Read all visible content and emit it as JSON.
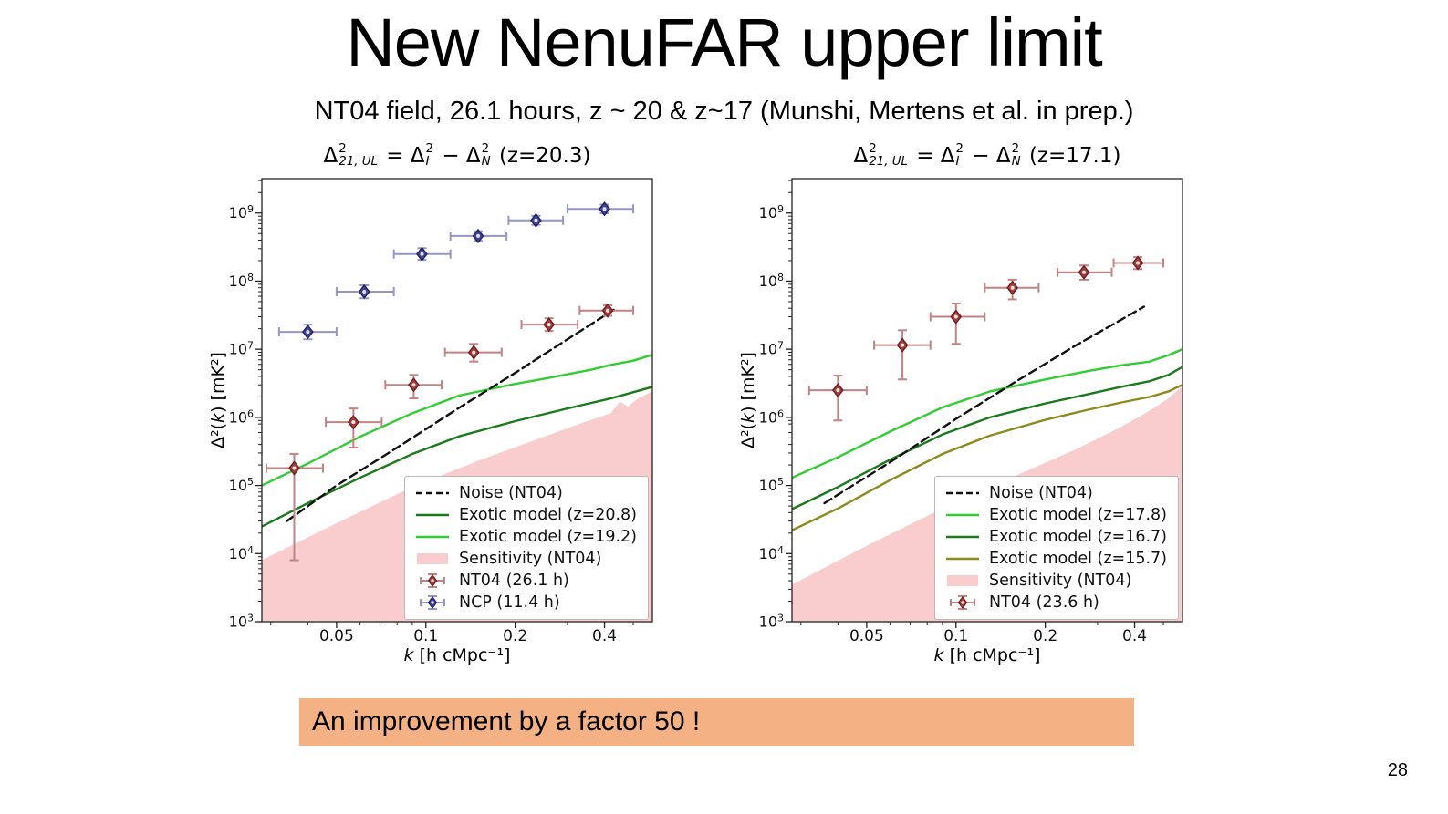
{
  "slide": {
    "title": "New NenuFAR upper limit",
    "subtitle": "NT04 field, 26.1 hours, z ~ 20 & z~17 (Munshi, Mertens et al. in prep.)"
  },
  "banner": {
    "text": "An improvement by a factor 50 !",
    "bg_color": "#f4b183"
  },
  "page_number": "28",
  "chart_data": [
    {
      "type": "line+errorbar-scatter",
      "title": "Δ²_{21,UL} = Δ²_I − Δ²_N (z=20.3)",
      "title_segments": [
        {
          "t": "Δ",
          "sup": "2",
          "sub": "21, UL"
        },
        {
          "t": " = "
        },
        {
          "t": "Δ",
          "sup": "2",
          "sub": "I"
        },
        {
          "t": " − "
        },
        {
          "t": "Δ",
          "sup": "2",
          "sub": "N"
        },
        {
          "t": " (z=20.3)"
        }
      ],
      "xlabel": "k [h cMpc⁻¹]",
      "ylabel": "Δ²(k) [mK²]",
      "xlabel_segments": [
        {
          "t": "k",
          "i": 1
        },
        {
          "t": " [h cMpc⁻¹]"
        }
      ],
      "ylabel_segments": [
        {
          "t": "Δ²("
        },
        {
          "t": "k",
          "i": 1
        },
        {
          "t": ") [mK²]"
        }
      ],
      "xscale": "log",
      "yscale": "log",
      "xlim": [
        0.028,
        0.58
      ],
      "ylim": [
        1000.0,
        3200000000.0
      ],
      "xticks": [
        0.05,
        0.1,
        0.2,
        0.4
      ],
      "xminor": [
        0.03,
        0.04,
        0.06,
        0.07,
        0.08,
        0.09,
        0.3,
        0.5
      ],
      "ydecades": [
        3,
        4,
        5,
        6,
        7,
        8,
        9
      ],
      "sensitivity": {
        "label": "Sensitivity (NT04)",
        "color": "#f9cdce",
        "x": [
          0.028,
          0.05,
          0.09,
          0.15,
          0.25,
          0.35,
          0.42,
          0.45,
          0.48,
          0.52,
          0.58
        ],
        "y": [
          8000.0,
          28000.0,
          95000.0,
          230000.0,
          520000.0,
          880000.0,
          1150000.0,
          1700000.0,
          1450000.0,
          1900000.0,
          2400000.0
        ]
      },
      "lines": [
        {
          "label": "Noise (NT04)",
          "color": "#111111",
          "dash": true,
          "x": [
            0.034,
            0.05,
            0.08,
            0.13,
            0.2,
            0.3,
            0.43
          ],
          "y": [
            30000.0,
            100000.0,
            360000.0,
            1400000.0,
            4500000.0,
            14000000.0,
            38000000.0
          ]
        },
        {
          "label": "Exotic model (z=20.8)",
          "color": "#1b7a1b",
          "x": [
            0.028,
            0.04,
            0.06,
            0.09,
            0.13,
            0.2,
            0.3,
            0.42,
            0.58
          ],
          "y": [
            25000.0,
            55000.0,
            130000.0,
            290000.0,
            530000.0,
            880000.0,
            1350000.0,
            1900000.0,
            2800000.0
          ]
        },
        {
          "label": "Exotic model (z=19.2)",
          "color": "#32cd32",
          "x": [
            0.028,
            0.04,
            0.06,
            0.09,
            0.13,
            0.2,
            0.26,
            0.3,
            0.36,
            0.42,
            0.5,
            0.58
          ],
          "y": [
            100000.0,
            210000.0,
            520000.0,
            1150000.0,
            2100000.0,
            3100000.0,
            3800000.0,
            4300000.0,
            5000000.0,
            5900000.0,
            6800000.0,
            8300000.0
          ]
        }
      ],
      "points": [
        {
          "label": "NT04 (26.1 h)",
          "color": "#a63d3d",
          "edge": "#6e1f1f",
          "err_color": "#c08484",
          "data": [
            {
              "k": 0.036,
              "klo": 0.029,
              "khi": 0.045,
              "v": 180000.0,
              "vlo": 8000.0,
              "vhi": 290000.0
            },
            {
              "k": 0.057,
              "klo": 0.046,
              "khi": 0.071,
              "v": 850000.0,
              "vlo": 360000.0,
              "vhi": 1350000.0
            },
            {
              "k": 0.091,
              "klo": 0.073,
              "khi": 0.113,
              "v": 3000000.0,
              "vlo": 1900000.0,
              "vhi": 4200000.0
            },
            {
              "k": 0.145,
              "klo": 0.116,
              "khi": 0.18,
              "v": 9000000.0,
              "vlo": 6600000.0,
              "vhi": 12000000.0
            },
            {
              "k": 0.26,
              "klo": 0.21,
              "khi": 0.325,
              "v": 23000000.0,
              "vlo": 18500000.0,
              "vhi": 28500000.0
            },
            {
              "k": 0.41,
              "klo": 0.33,
              "khi": 0.5,
              "v": 37000000.0,
              "vlo": 31000000.0,
              "vhi": 44000000.0
            }
          ]
        },
        {
          "label": "NCP (11.4 h)",
          "color": "#41419f",
          "edge": "#23235f",
          "err_color": "#9595c6",
          "data": [
            {
              "k": 0.04,
              "klo": 0.032,
              "khi": 0.05,
              "v": 18000000.0,
              "vlo": 14000000.0,
              "vhi": 23000000.0
            },
            {
              "k": 0.062,
              "klo": 0.05,
              "khi": 0.078,
              "v": 70000000.0,
              "vlo": 56000000.0,
              "vhi": 87000000.0
            },
            {
              "k": 0.097,
              "klo": 0.078,
              "khi": 0.121,
              "v": 250000000.0,
              "vlo": 205000000.0,
              "vhi": 305000000.0
            },
            {
              "k": 0.15,
              "klo": 0.121,
              "khi": 0.187,
              "v": 460000000.0,
              "vlo": 390000000.0,
              "vhi": 540000000.0
            },
            {
              "k": 0.235,
              "klo": 0.19,
              "khi": 0.29,
              "v": 780000000.0,
              "vlo": 670000000.0,
              "vhi": 910000000.0
            },
            {
              "k": 0.4,
              "klo": 0.3,
              "khi": 0.5,
              "v": 1150000000.0,
              "vlo": 990000000.0,
              "vhi": 1330000000.0
            }
          ]
        }
      ],
      "legend": [
        {
          "glyph": "dash",
          "color": "#111111",
          "label": "Noise (NT04)"
        },
        {
          "glyph": "line",
          "color": "#1b7a1b",
          "label": "Exotic model (z=20.8)"
        },
        {
          "glyph": "line",
          "color": "#32cd32",
          "label": "Exotic model (z=19.2)"
        },
        {
          "glyph": "patch",
          "color": "#f9cdce",
          "label": "Sensitivity (NT04)"
        },
        {
          "glyph": "marker",
          "color": "#a63d3d",
          "edge": "#6e1f1f",
          "err": "#c08484",
          "label": "NT04 (26.1 h)"
        },
        {
          "glyph": "marker",
          "color": "#41419f",
          "edge": "#23235f",
          "err": "#9595c6",
          "label": "NCP (11.4 h)"
        }
      ]
    },
    {
      "type": "line+errorbar-scatter",
      "title": "Δ²_{21,UL} = Δ²_I − Δ²_N (z=17.1)",
      "title_segments": [
        {
          "t": "Δ",
          "sup": "2",
          "sub": "21, UL"
        },
        {
          "t": " = "
        },
        {
          "t": "Δ",
          "sup": "2",
          "sub": "I"
        },
        {
          "t": " − "
        },
        {
          "t": "Δ",
          "sup": "2",
          "sub": "N"
        },
        {
          "t": " (z=17.1)"
        }
      ],
      "xlabel": "k [h cMpc⁻¹]",
      "ylabel": "Δ²(k) [mK²]",
      "xlabel_segments": [
        {
          "t": "k",
          "i": 1
        },
        {
          "t": " [h cMpc⁻¹]"
        }
      ],
      "ylabel_segments": [
        {
          "t": "Δ²("
        },
        {
          "t": "k",
          "i": 1
        },
        {
          "t": ") [mK²]"
        }
      ],
      "xscale": "log",
      "yscale": "log",
      "xlim": [
        0.028,
        0.58
      ],
      "ylim": [
        1000.0,
        3200000000.0
      ],
      "xticks": [
        0.05,
        0.1,
        0.2,
        0.4
      ],
      "xminor": [
        0.03,
        0.04,
        0.06,
        0.07,
        0.08,
        0.09,
        0.3,
        0.5
      ],
      "ydecades": [
        3,
        4,
        5,
        6,
        7,
        8,
        9
      ],
      "sensitivity": {
        "label": "Sensitivity (NT04)",
        "color": "#f9cdce",
        "x": [
          0.028,
          0.05,
          0.09,
          0.15,
          0.25,
          0.35,
          0.45,
          0.52,
          0.58
        ],
        "y": [
          3500.0,
          13000.0,
          46000.0,
          125000.0,
          330000.0,
          680000.0,
          1250000.0,
          1900000.0,
          2900000.0
        ]
      },
      "lines": [
        {
          "label": "Noise (NT04)",
          "color": "#111111",
          "dash": true,
          "x": [
            0.036,
            0.06,
            0.1,
            0.16,
            0.25,
            0.43
          ],
          "y": [
            55000.0,
            220000.0,
            950000.0,
            3400000.0,
            11000000.0,
            42000000.0
          ]
        },
        {
          "label": "Exotic model (z=17.8)",
          "color": "#32cd32",
          "x": [
            0.028,
            0.04,
            0.06,
            0.09,
            0.13,
            0.2,
            0.28,
            0.36,
            0.45,
            0.52,
            0.58
          ],
          "y": [
            130000.0,
            260000.0,
            620000.0,
            1400000.0,
            2400000.0,
            3600000.0,
            4800000.0,
            5800000.0,
            6600000.0,
            8200000.0,
            10000000.0
          ]
        },
        {
          "label": "Exotic model (z=16.7)",
          "color": "#1b7a1b",
          "x": [
            0.028,
            0.04,
            0.06,
            0.09,
            0.13,
            0.2,
            0.28,
            0.36,
            0.45,
            0.52,
            0.58
          ],
          "y": [
            45000.0,
            95000.0,
            240000.0,
            560000.0,
            1000000.0,
            1600000.0,
            2200000.0,
            2800000.0,
            3400000.0,
            4200000.0,
            5500000.0
          ]
        },
        {
          "label": "Exotic model (z=15.7)",
          "color": "#8f8a1d",
          "x": [
            0.028,
            0.04,
            0.06,
            0.09,
            0.13,
            0.2,
            0.28,
            0.36,
            0.45,
            0.52,
            0.58
          ],
          "y": [
            22000.0,
            46000.0,
            120000.0,
            290000.0,
            540000.0,
            920000.0,
            1300000.0,
            1650000.0,
            2000000.0,
            2400000.0,
            3000000.0
          ]
        }
      ],
      "points": [
        {
          "label": "NT04 (23.6 h)",
          "color": "#a63d3d",
          "edge": "#6e1f1f",
          "err_color": "#c08484",
          "data": [
            {
              "k": 0.04,
              "klo": 0.032,
              "khi": 0.05,
              "v": 2500000.0,
              "vlo": 900000.0,
              "vhi": 4100000.0
            },
            {
              "k": 0.066,
              "klo": 0.053,
              "khi": 0.082,
              "v": 11500000.0,
              "vlo": 3600000.0,
              "vhi": 19000000.0
            },
            {
              "k": 0.1,
              "klo": 0.082,
              "khi": 0.125,
              "v": 30000000.0,
              "vlo": 12000000.0,
              "vhi": 47000000.0
            },
            {
              "k": 0.155,
              "klo": 0.125,
              "khi": 0.19,
              "v": 80000000.0,
              "vlo": 54000000.0,
              "vhi": 105000000.0
            },
            {
              "k": 0.27,
              "klo": 0.22,
              "khi": 0.335,
              "v": 135000000.0,
              "vlo": 105000000.0,
              "vhi": 170000000.0
            },
            {
              "k": 0.41,
              "klo": 0.34,
              "khi": 0.5,
              "v": 185000000.0,
              "vlo": 150000000.0,
              "vhi": 225000000.0
            }
          ]
        }
      ],
      "legend": [
        {
          "glyph": "dash",
          "color": "#111111",
          "label": "Noise (NT04)"
        },
        {
          "glyph": "line",
          "color": "#32cd32",
          "label": "Exotic model (z=17.8)"
        },
        {
          "glyph": "line",
          "color": "#1b7a1b",
          "label": "Exotic model (z=16.7)"
        },
        {
          "glyph": "line",
          "color": "#8f8a1d",
          "label": "Exotic model (z=15.7)"
        },
        {
          "glyph": "patch",
          "color": "#f9cdce",
          "label": "Sensitivity (NT04)"
        },
        {
          "glyph": "marker",
          "color": "#a63d3d",
          "edge": "#6e1f1f",
          "err": "#c08484",
          "label": "NT04 (23.6 h)"
        }
      ]
    }
  ]
}
